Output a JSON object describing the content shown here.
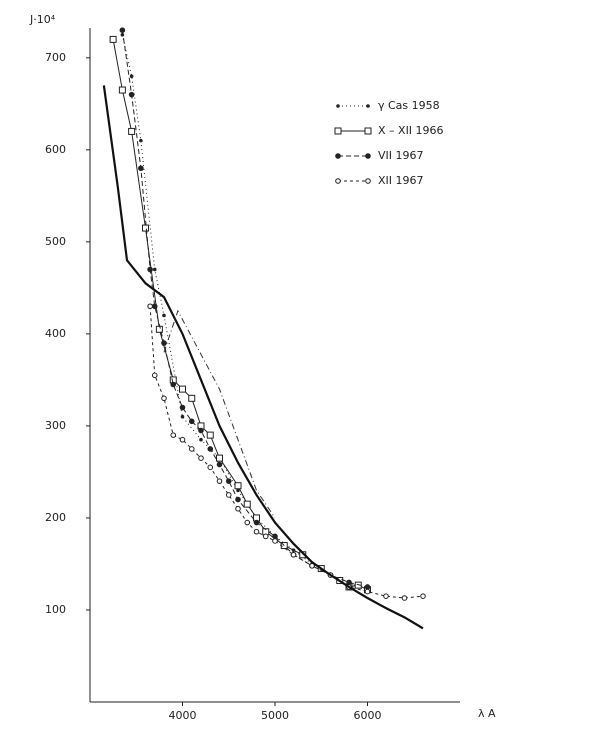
{
  "chart_data": {
    "type": "line",
    "ylabel": "J·10⁴",
    "xlabel": "λ A",
    "xlim": [
      3000,
      7000
    ],
    "ylim": [
      0,
      740
    ],
    "xticks": [
      4000,
      5000,
      6000
    ],
    "yticks": [
      100,
      200,
      300,
      400,
      500,
      600,
      700
    ],
    "grid": false,
    "legend": "upper right",
    "series": [
      {
        "name": "γ Cas 1958",
        "color": "#222222",
        "marker": "dot",
        "dash": "1,3",
        "line_width": 1,
        "x": [
          3350,
          3450,
          3550,
          3700,
          3800,
          4000,
          4200,
          4400,
          4600,
          4800,
          5000,
          5200,
          5400,
          5600,
          5800,
          6000
        ],
        "values": [
          725,
          680,
          610,
          470,
          420,
          310,
          285,
          265,
          230,
          200,
          180,
          165,
          150,
          137,
          130,
          120
        ]
      },
      {
        "name": "X – XII 1966",
        "color": "#222222",
        "marker": "square",
        "dash": "none",
        "line_width": 1,
        "x": [
          3250,
          3350,
          3450,
          3600,
          3750,
          3900,
          4000,
          4100,
          4200,
          4300,
          4400,
          4600,
          4700,
          4800,
          4900,
          5100,
          5300,
          5500,
          5700,
          5800,
          5900,
          6000
        ],
        "values": [
          720,
          665,
          620,
          515,
          405,
          350,
          340,
          330,
          300,
          290,
          265,
          235,
          215,
          200,
          185,
          170,
          160,
          145,
          132,
          125,
          127,
          122
        ]
      },
      {
        "name": "VII 1967",
        "color": "#222222",
        "marker": "fcircle",
        "dash": "5,3",
        "line_width": 1,
        "x": [
          3350,
          3450,
          3550,
          3650,
          3700,
          3800,
          3900,
          4000,
          4100,
          4200,
          4300,
          4400,
          4500,
          4600,
          4800,
          5000,
          5200,
          5400,
          5600,
          5800,
          6000
        ],
        "values": [
          730,
          660,
          580,
          470,
          430,
          390,
          345,
          320,
          305,
          295,
          275,
          258,
          240,
          220,
          195,
          180,
          160,
          148,
          138,
          130,
          125
        ]
      },
      {
        "name": "XII 1967",
        "color": "#222222",
        "marker": "ocircle",
        "dash": "3,3",
        "line_width": 1,
        "x": [
          3650,
          3700,
          3800,
          3900,
          4000,
          4100,
          4200,
          4300,
          4400,
          4500,
          4600,
          4700,
          4800,
          4900,
          5000,
          5200,
          5400,
          5600,
          5800,
          6000,
          6200,
          6400,
          6600
        ],
        "values": [
          430,
          355,
          330,
          290,
          285,
          275,
          265,
          255,
          240,
          225,
          210,
          195,
          185,
          180,
          175,
          160,
          148,
          138,
          125,
          120,
          115,
          113,
          115
        ]
      },
      {
        "color": "#111111",
        "marker": "none",
        "dash": "none",
        "line_width": 2.2,
        "x": [
          3150,
          3300,
          3400,
          3600,
          3800,
          4000,
          4200,
          4400,
          4600,
          4800,
          5000,
          5200,
          5400,
          5600,
          5800,
          6000,
          6200,
          6400,
          6600
        ],
        "values": [
          670,
          560,
          480,
          455,
          440,
          400,
          350,
          300,
          260,
          225,
          195,
          172,
          152,
          138,
          125,
          113,
          102,
          92,
          80
        ]
      },
      {
        "color": "#333333",
        "marker": "none",
        "dash": "6,3,1,3",
        "line_width": 1,
        "x": [
          3800,
          3950,
          4400,
          4800,
          5000
        ],
        "values": [
          380,
          425,
          340,
          230,
          200
        ]
      }
    ]
  }
}
